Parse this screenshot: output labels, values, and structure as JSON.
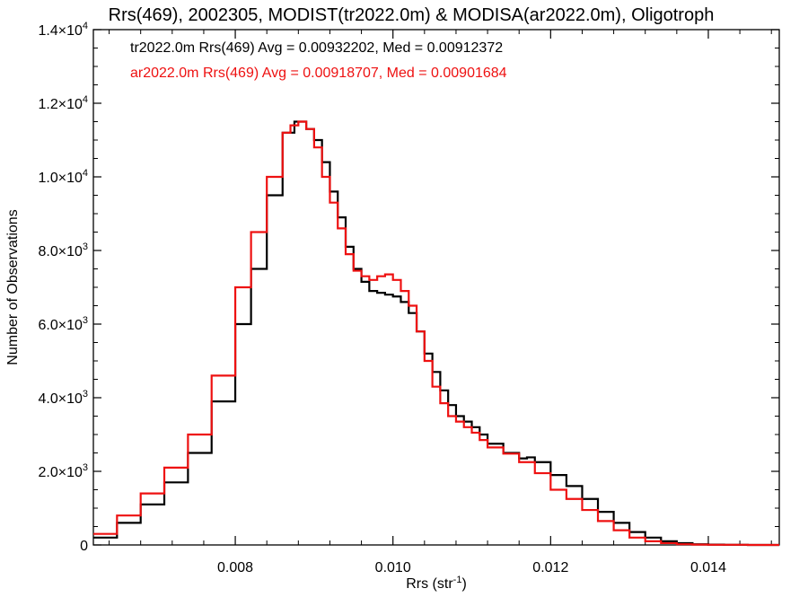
{
  "chart_data": {
    "type": "line",
    "title": "Rrs(469), 2002305, MODIST(tr2022.0m) & MODISA(ar2022.0m), Oligotroph",
    "xlabel": "Rrs (str",
    "xlabel_sup": "-1",
    "xlabel_end": ")",
    "ylabel": "Number of Observations",
    "xlim": [
      0.0062,
      0.0149
    ],
    "ylim": [
      0,
      14000
    ],
    "x_ticks": [
      {
        "value": 0.008,
        "label": "0.008"
      },
      {
        "value": 0.01,
        "label": "0.010"
      },
      {
        "value": 0.012,
        "label": "0.012"
      },
      {
        "value": 0.014,
        "label": "0.014"
      }
    ],
    "y_ticks": [
      {
        "value": 0,
        "mant": "0",
        "exp": ""
      },
      {
        "value": 2000,
        "mant": "2.0×10",
        "exp": "3"
      },
      {
        "value": 4000,
        "mant": "4.0×10",
        "exp": "3"
      },
      {
        "value": 6000,
        "mant": "6.0×10",
        "exp": "3"
      },
      {
        "value": 8000,
        "mant": "8.0×10",
        "exp": "3"
      },
      {
        "value": 10000,
        "mant": "1.0×10",
        "exp": "4"
      },
      {
        "value": 12000,
        "mant": "1.2×10",
        "exp": "4"
      },
      {
        "value": 14000,
        "mant": "1.4×10",
        "exp": "4"
      }
    ],
    "annotations": [
      {
        "text": "tr2022.0m Rrs(469) Avg = 0.00932202, Med = 0.00912372",
        "color": "#000000"
      },
      {
        "text": "ar2022.0m Rrs(469) Avg = 0.00918707, Med = 0.00901684",
        "color": "#ee1111"
      }
    ],
    "series": [
      {
        "color": "#000000",
        "x": [
          0.0062,
          0.0065,
          0.0068,
          0.0071,
          0.0074,
          0.0077,
          0.008,
          0.0082,
          0.0084,
          0.0086,
          0.00875,
          0.0089,
          0.009,
          0.0091,
          0.0092,
          0.0093,
          0.0094,
          0.0095,
          0.0096,
          0.0097,
          0.0098,
          0.0099,
          0.01,
          0.0101,
          0.0102,
          0.0103,
          0.0104,
          0.0105,
          0.0106,
          0.0107,
          0.0108,
          0.0109,
          0.011,
          0.0111,
          0.0112,
          0.0114,
          0.0116,
          0.0117,
          0.0118,
          0.012,
          0.0122,
          0.0124,
          0.0126,
          0.0128,
          0.013,
          0.0132,
          0.0134,
          0.0136,
          0.0138,
          0.014,
          0.0142,
          0.0145,
          0.0149
        ],
        "y": [
          200,
          600,
          1100,
          1700,
          2500,
          3900,
          6000,
          7500,
          9500,
          11200,
          11500,
          11300,
          11000,
          10400,
          9600,
          8900,
          8100,
          7500,
          7150,
          6900,
          6850,
          6800,
          6750,
          6600,
          6300,
          5800,
          5200,
          4700,
          4200,
          3800,
          3500,
          3350,
          3200,
          3000,
          2750,
          2500,
          2350,
          2380,
          2250,
          1900,
          1600,
          1250,
          900,
          600,
          350,
          200,
          100,
          50,
          20,
          10,
          5,
          0,
          0
        ]
      },
      {
        "color": "#ee1111",
        "x": [
          0.0062,
          0.0065,
          0.0068,
          0.0071,
          0.0074,
          0.0077,
          0.008,
          0.0082,
          0.0084,
          0.0086,
          0.0087,
          0.0088,
          0.0089,
          0.009,
          0.0091,
          0.0092,
          0.0093,
          0.0094,
          0.0095,
          0.0096,
          0.0097,
          0.0098,
          0.0099,
          0.01,
          0.0101,
          0.0102,
          0.0103,
          0.0104,
          0.0105,
          0.0106,
          0.0107,
          0.0108,
          0.0109,
          0.011,
          0.0111,
          0.0112,
          0.0114,
          0.0116,
          0.0118,
          0.012,
          0.0122,
          0.0124,
          0.0126,
          0.0128,
          0.013,
          0.0132,
          0.0134,
          0.0136,
          0.0138,
          0.014,
          0.0145,
          0.0149
        ],
        "y": [
          300,
          800,
          1400,
          2100,
          3000,
          4600,
          7000,
          8500,
          10000,
          11200,
          11400,
          11500,
          11300,
          10800,
          10000,
          9300,
          8600,
          7900,
          7450,
          7300,
          7200,
          7300,
          7350,
          7200,
          6900,
          6500,
          5800,
          5000,
          4300,
          3850,
          3500,
          3350,
          3200,
          3050,
          2850,
          2650,
          2480,
          2250,
          1950,
          1500,
          1250,
          950,
          650,
          400,
          200,
          100,
          50,
          20,
          10,
          5,
          0,
          0
        ]
      }
    ],
    "grid": false,
    "legend": "none"
  }
}
